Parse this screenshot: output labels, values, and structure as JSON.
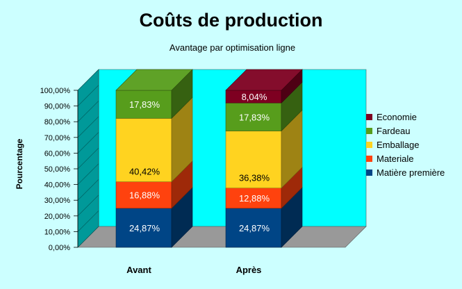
{
  "chart_data": {
    "type": "bar",
    "stacked": true,
    "percent": true,
    "three_d": true,
    "title": "Coûts de production",
    "subtitle": "Avantage par optimisation ligne",
    "xlabel": "",
    "ylabel": "Pourcentage",
    "ylim": [
      0,
      100
    ],
    "y_ticks": [
      "0,00%",
      "10,00%",
      "20,00%",
      "30,00%",
      "40,00%",
      "50,00%",
      "60,00%",
      "70,00%",
      "80,00%",
      "90,00%",
      "100,00%"
    ],
    "categories": [
      "Avant",
      "Après"
    ],
    "series": [
      {
        "name": "Matière première",
        "color": "#004586",
        "values": [
          24.87,
          24.87
        ],
        "labels": [
          "24,87%",
          "24,87%"
        ]
      },
      {
        "name": "Materiale",
        "color": "#ff420e",
        "values": [
          16.88,
          12.88
        ],
        "labels": [
          "16,88%",
          "12,88%"
        ]
      },
      {
        "name": "Emballage",
        "color": "#ffd320",
        "values": [
          40.42,
          36.38
        ],
        "labels": [
          "40,42%",
          "36,38%"
        ]
      },
      {
        "name": "Fardeau",
        "color": "#579d1c",
        "values": [
          17.83,
          17.83
        ],
        "labels": [
          "17,83%",
          "17,83%"
        ]
      },
      {
        "name": "Economie",
        "color": "#7e0021",
        "values": [
          0,
          8.04
        ],
        "labels": [
          "",
          "8,04%"
        ]
      }
    ],
    "legend_position": "right",
    "grid": false,
    "colors": {
      "background": "#ccffff",
      "plot_wall": "#00ffff",
      "side_wall": "#009999",
      "floor": "#999999"
    }
  }
}
